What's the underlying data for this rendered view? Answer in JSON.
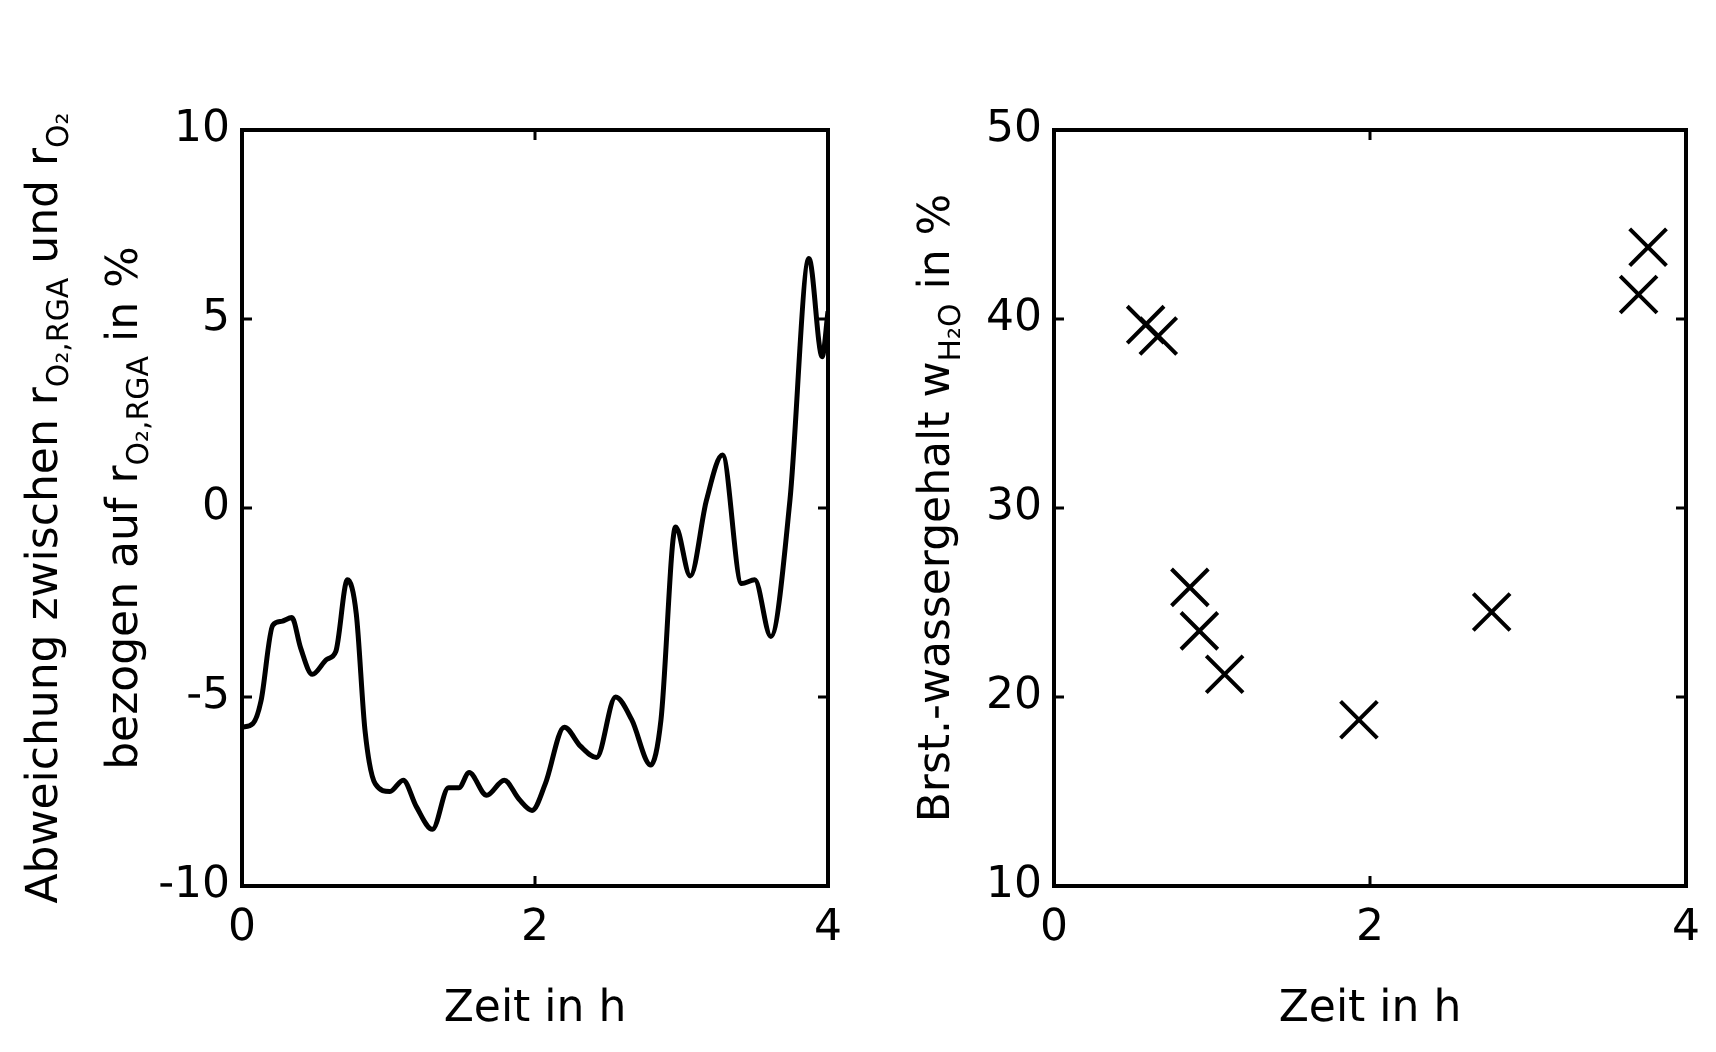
{
  "chart_data": [
    {
      "type": "line",
      "xlabel": "Zeit in h",
      "ylabel": "Abweichung zwischen r$_{O₂,RGA}$ und r$_{O₂}$\nbezogen auf r$_{O₂,RGA}$ in %",
      "xlim": [
        0,
        4
      ],
      "xticks": [
        0,
        2,
        4
      ],
      "ylim": [
        -10,
        10
      ],
      "yticks": [
        -10,
        -5,
        0,
        5,
        10
      ],
      "grid": false,
      "legend": false,
      "marker": "none",
      "line_style": "solid",
      "series": [
        {
          "color": "#000000",
          "x": [
            0,
            0.075,
            0.13,
            0.21,
            0.27,
            0.34,
            0.4,
            0.48,
            0.58,
            0.64,
            0.72,
            0.78,
            0.84,
            0.91,
            1.01,
            1.1,
            1.19,
            1.3,
            1.41,
            1.48,
            1.55,
            1.67,
            1.79,
            1.89,
            1.98,
            2.07,
            2.2,
            2.31,
            2.42,
            2.55,
            2.66,
            2.79,
            2.86,
            2.96,
            3.06,
            3.17,
            3.28,
            3.41,
            3.5,
            3.61,
            3.74,
            3.87,
            3.96,
            4.0
          ],
          "values": [
            -5.8,
            -5.7,
            -5.1,
            -3.1,
            -3.0,
            -2.9,
            -3.7,
            -4.4,
            -4.0,
            -3.8,
            -1.9,
            -2.8,
            -5.9,
            -7.3,
            -7.5,
            -7.2,
            -7.9,
            -8.5,
            -7.4,
            -7.4,
            -7.0,
            -7.6,
            -7.2,
            -7.7,
            -8.0,
            -7.3,
            -5.8,
            -6.3,
            -6.6,
            -5.0,
            -5.6,
            -6.8,
            -5.6,
            -0.5,
            -1.8,
            0.2,
            1.4,
            -2.0,
            -1.9,
            -3.4,
            0.2,
            6.6,
            4.0,
            5.2
          ]
        }
      ]
    },
    {
      "type": "scatter",
      "xlabel": "Zeit in h",
      "ylabel": "Brst.-wassergehalt w$_{H₂O}$ in %",
      "xlim": [
        0,
        4
      ],
      "xticks": [
        0,
        2,
        4
      ],
      "ylim": [
        10,
        50
      ],
      "yticks": [
        10,
        20,
        30,
        40,
        50
      ],
      "grid": false,
      "legend": false,
      "marker": "cross",
      "series": [
        {
          "color": "#000000",
          "x": [
            0.58,
            0.66,
            0.86,
            0.92,
            1.08,
            1.93,
            2.77,
            3.7,
            3.76
          ],
          "values": [
            39.7,
            39.1,
            25.8,
            23.5,
            21.2,
            18.8,
            24.5,
            41.3,
            43.8
          ]
        }
      ]
    }
  ]
}
